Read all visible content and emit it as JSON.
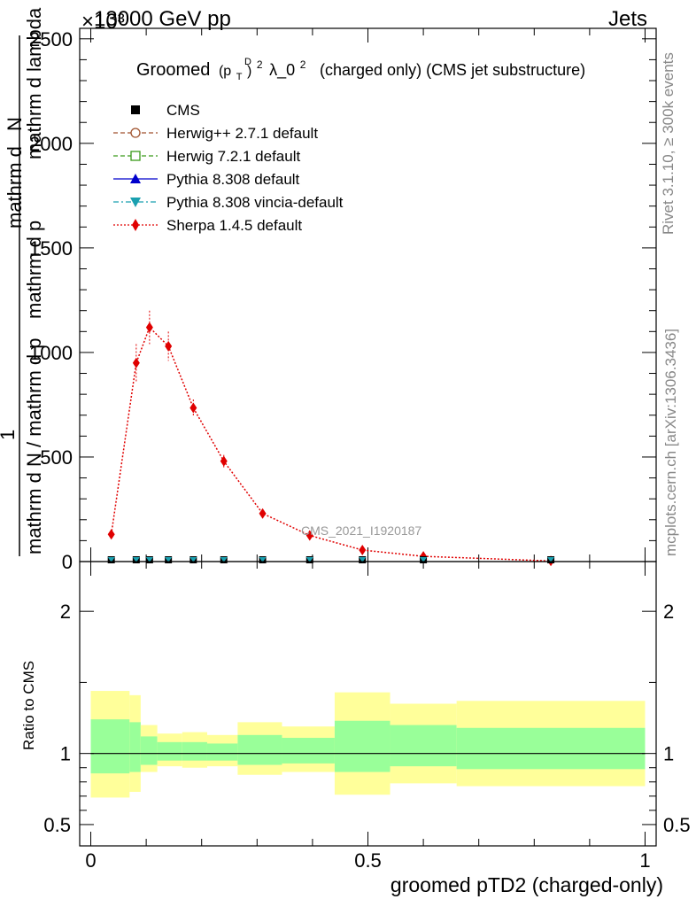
{
  "header": {
    "left": "13000 GeV pp",
    "right": "Jets",
    "exponent": "×10³"
  },
  "side_labels": {
    "rivet": "Rivet 3.1.10, ≥ 300k events",
    "mcplots": "mcplots.cern.ch [arXiv:1306.3436]"
  },
  "title": {
    "prefix": "Groomed",
    "expr": "(p",
    "sup_d": "D",
    "sub_t": "T",
    "close": ")",
    "sup_2": "2",
    "lambda": "λ_0",
    "sup_2b": "2",
    "suffix": "(charged only) (CMS jet substructure)"
  },
  "watermark": "CMS_2021_I1920187",
  "y_label_main": {
    "numerator_top": "mathrm d",
    "numerator_N": "N",
    "one": "1",
    "denominator": "mathrm d N / mathrm d p",
    "denominator_tail": "mathrm d p",
    "right_part": "mathrm d lambda"
  },
  "y_label_ratio": "Ratio to CMS",
  "x_label": "groomed pTD2 (charged-only)",
  "legend": [
    {
      "label": "CMS",
      "color": "#000000",
      "marker": "square-filled",
      "line": "none"
    },
    {
      "label": "Herwig++ 2.7.1 default",
      "color": "#a0522d",
      "marker": "circle-open",
      "line": "dashed"
    },
    {
      "label": "Herwig 7.2.1 default",
      "color": "#3a9a1a",
      "marker": "square-open",
      "line": "dashed"
    },
    {
      "label": "Pythia 8.308 default",
      "color": "#0000cc",
      "marker": "triangle-up",
      "line": "solid"
    },
    {
      "label": "Pythia 8.308 vincia-default",
      "color": "#1aa0b0",
      "marker": "triangle-down",
      "line": "dashdot"
    },
    {
      "label": "Sherpa 1.4.5 default",
      "color": "#e00000",
      "marker": "diamond",
      "line": "dotted"
    }
  ],
  "chart_data": [
    {
      "type": "line",
      "panel": "main",
      "xlim": [
        -0.02,
        1.02
      ],
      "ylim": [
        0,
        2550
      ],
      "y_scale_note": "×10³",
      "yticks": [
        0,
        500,
        1000,
        1500,
        2000,
        2500
      ],
      "ytick_labels": [
        "0",
        "500",
        "1000",
        "1500",
        "2000",
        "2500"
      ],
      "series": [
        {
          "name": "Sherpa 1.4.5 default",
          "x": [
            0.037,
            0.082,
            0.106,
            0.14,
            0.185,
            0.24,
            0.31,
            0.395,
            0.49,
            0.6,
            0.83
          ],
          "y": [
            130,
            950,
            1120,
            1030,
            735,
            480,
            230,
            125,
            55,
            25,
            3
          ],
          "err": [
            10,
            90,
            80,
            70,
            40,
            30,
            18,
            12,
            8,
            6,
            2
          ]
        },
        {
          "name": "CMS",
          "x": [
            0.037,
            0.082,
            0.106,
            0.14,
            0.185,
            0.24,
            0.31,
            0.395,
            0.49,
            0.6,
            0.83
          ],
          "y": [
            0,
            0,
            0,
            0,
            0,
            0,
            0,
            0,
            0,
            0,
            0
          ]
        },
        {
          "name": "Pythia 8.308 vincia-default",
          "x": [
            0.037,
            0.082,
            0.106,
            0.14,
            0.185,
            0.24,
            0.31,
            0.395,
            0.49,
            0.6,
            0.83
          ],
          "y": [
            0,
            0,
            0,
            0,
            0,
            0,
            0,
            0,
            0,
            0,
            0
          ]
        }
      ]
    },
    {
      "type": "area",
      "panel": "ratio",
      "xlim": [
        -0.02,
        1.02
      ],
      "ylim": [
        0.35,
        2.35
      ],
      "yticks": [
        0.5,
        1,
        2
      ],
      "ytick_labels": [
        "0.5",
        "1",
        "2"
      ],
      "xticks": [
        0,
        0.5,
        1
      ],
      "xtick_labels": [
        "0",
        "0.5",
        "1"
      ],
      "bins": [
        {
          "x0": 0.0,
          "x1": 0.07,
          "yel_lo": 0.69,
          "yel_hi": 1.44,
          "grn_lo": 0.86,
          "grn_hi": 1.24
        },
        {
          "x0": 0.07,
          "x1": 0.09,
          "yel_lo": 0.73,
          "yel_hi": 1.41,
          "grn_lo": 0.87,
          "grn_hi": 1.22
        },
        {
          "x0": 0.09,
          "x1": 0.12,
          "yel_lo": 0.87,
          "yel_hi": 1.2,
          "grn_lo": 0.92,
          "grn_hi": 1.12
        },
        {
          "x0": 0.12,
          "x1": 0.165,
          "yel_lo": 0.91,
          "yel_hi": 1.14,
          "grn_lo": 0.95,
          "grn_hi": 1.08
        },
        {
          "x0": 0.165,
          "x1": 0.21,
          "yel_lo": 0.9,
          "yel_hi": 1.15,
          "grn_lo": 0.95,
          "grn_hi": 1.08
        },
        {
          "x0": 0.21,
          "x1": 0.265,
          "yel_lo": 0.91,
          "yel_hi": 1.13,
          "grn_lo": 0.95,
          "grn_hi": 1.07
        },
        {
          "x0": 0.265,
          "x1": 0.345,
          "yel_lo": 0.85,
          "yel_hi": 1.22,
          "grn_lo": 0.92,
          "grn_hi": 1.13
        },
        {
          "x0": 0.345,
          "x1": 0.44,
          "yel_lo": 0.87,
          "yel_hi": 1.19,
          "grn_lo": 0.93,
          "grn_hi": 1.11
        },
        {
          "x0": 0.44,
          "x1": 0.54,
          "yel_lo": 0.71,
          "yel_hi": 1.43,
          "grn_lo": 0.87,
          "grn_hi": 1.23
        },
        {
          "x0": 0.54,
          "x1": 0.66,
          "yel_lo": 0.79,
          "yel_hi": 1.35,
          "grn_lo": 0.91,
          "grn_hi": 1.2
        },
        {
          "x0": 0.66,
          "x1": 1.0,
          "yel_lo": 0.77,
          "yel_hi": 1.37,
          "grn_lo": 0.89,
          "grn_hi": 1.18
        }
      ],
      "reference_line": 1
    }
  ],
  "colors": {
    "band_outer": "#ffff9a",
    "band_inner": "#99ff99",
    "axis": "#000000",
    "side_text": "#888888"
  }
}
